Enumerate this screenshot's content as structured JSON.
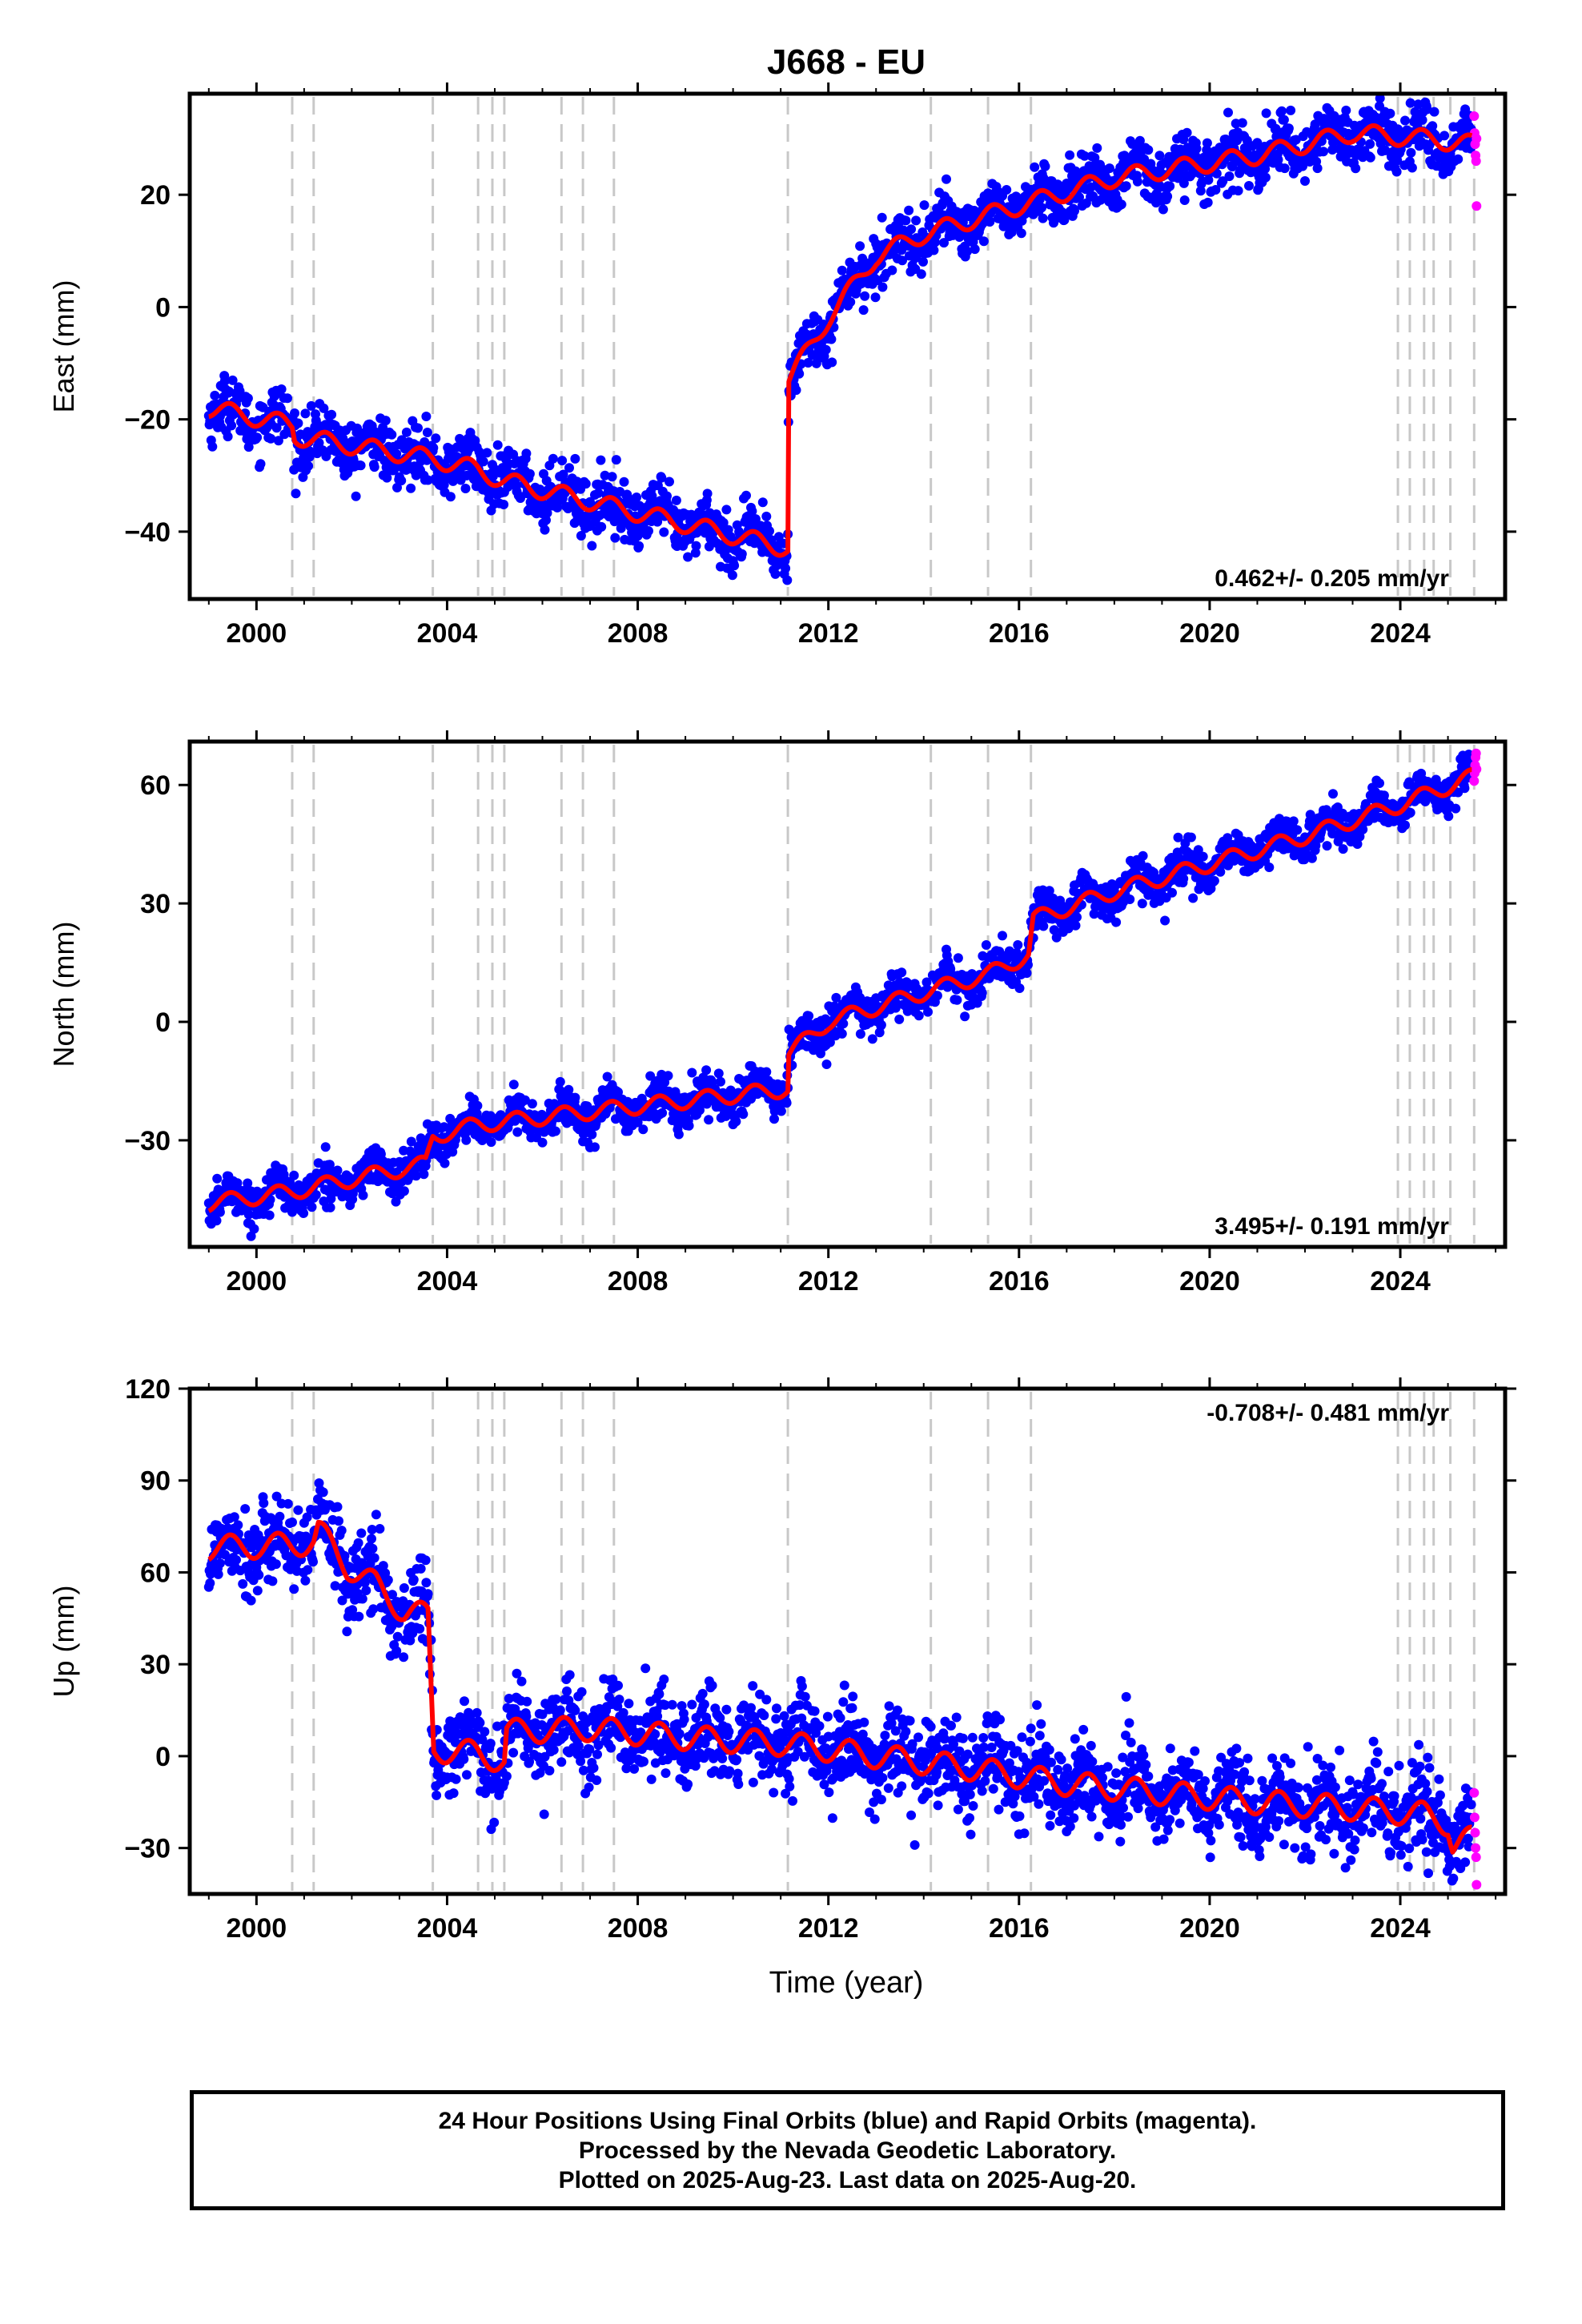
{
  "title": "J668 - EU",
  "xlabel": "Time (year)",
  "colors": {
    "final_orbits": "#0000ff",
    "rapid_orbits": "#ff00ff",
    "model": "#ff0000",
    "event_lines": "#c8c8c8"
  },
  "caption": {
    "line1": "24 Hour Positions Using Final Orbits (blue) and Rapid Orbits (magenta).",
    "line2": "Processed by the Nevada Geodetic Laboratory.",
    "line3": "Plotted on 2025-Aug-23. Last data on 2025-Aug-20."
  },
  "chart_data": [
    {
      "type": "scatter",
      "title": "J668 - EU",
      "ylabel": "East (mm)",
      "xlim": [
        1998.6,
        2026.2
      ],
      "ylim": [
        -52,
        38
      ],
      "xticks": [
        "2000",
        "2004",
        "2008",
        "2012",
        "2016",
        "2020",
        "2024"
      ],
      "yticks": [
        "-40",
        "-20",
        "0",
        "20"
      ],
      "rate_label": "0.462+/- 0.205 mm/yr",
      "rate_position": "bottom-right",
      "event_lines": [
        2000.75,
        2001.2,
        2003.7,
        2004.65,
        2004.95,
        2005.2,
        2006.4,
        2006.85,
        2007.5,
        2011.15,
        2014.15,
        2015.35,
        2016.25,
        2023.95,
        2024.2,
        2024.5,
        2024.7,
        2025.05,
        2025.55
      ],
      "seasonal_amplitude": 2,
      "noise_scatter": 2.5,
      "model": [
        [
          1999.0,
          -18
        ],
        [
          2000.75,
          -21
        ],
        [
          2000.8,
          -23
        ],
        [
          2003.7,
          -27
        ],
        [
          2004.65,
          -29
        ],
        [
          2005.2,
          -31
        ],
        [
          2011.15,
          -43
        ],
        [
          2011.17,
          -13
        ],
        [
          2012.0,
          -2
        ],
        [
          2013.0,
          9
        ],
        [
          2014.0,
          13
        ],
        [
          2016.0,
          18
        ],
        [
          2018.0,
          23
        ],
        [
          2021.0,
          27
        ],
        [
          2023.0,
          31
        ],
        [
          2024.5,
          30
        ],
        [
          2025.5,
          29
        ]
      ],
      "series": [
        {
          "name": "Final Orbits",
          "color": "#0000ff",
          "x_range": [
            1999.0,
            2025.5
          ]
        },
        {
          "name": "Rapid Orbits",
          "color": "#ff00ff",
          "points": [
            [
              2025.55,
              34
            ],
            [
              2025.56,
              31
            ],
            [
              2025.57,
              29
            ],
            [
              2025.58,
              27
            ],
            [
              2025.59,
              26
            ],
            [
              2025.6,
              18
            ],
            [
              2025.6,
              30
            ]
          ]
        }
      ]
    },
    {
      "type": "scatter",
      "ylabel": "North (mm)",
      "xlim": [
        1998.6,
        2026.2
      ],
      "ylim": [
        -57,
        71
      ],
      "xticks": [
        "2000",
        "2004",
        "2008",
        "2012",
        "2016",
        "2020",
        "2024"
      ],
      "yticks": [
        "-30",
        "0",
        "30",
        "60"
      ],
      "rate_label": "3.495+/- 0.191 mm/yr",
      "rate_position": "bottom-right",
      "event_lines": [
        2000.75,
        2001.2,
        2003.7,
        2004.65,
        2004.95,
        2005.2,
        2006.4,
        2006.85,
        2007.5,
        2011.15,
        2014.15,
        2015.35,
        2016.25,
        2023.95,
        2024.2,
        2024.5,
        2024.7,
        2025.05,
        2025.55
      ],
      "seasonal_amplitude": 2.5,
      "noise_scatter": 2.5,
      "model": [
        [
          1999.0,
          -46
        ],
        [
          2000.75,
          -43
        ],
        [
          2003.55,
          -36
        ],
        [
          2003.7,
          -29
        ],
        [
          2004.65,
          -26
        ],
        [
          2011.15,
          -17
        ],
        [
          2011.17,
          -8
        ],
        [
          2012.0,
          0
        ],
        [
          2014.15,
          8
        ],
        [
          2015.35,
          12
        ],
        [
          2016.2,
          17
        ],
        [
          2016.3,
          26
        ],
        [
          2018.0,
          33
        ],
        [
          2020.0,
          40
        ],
        [
          2022.0,
          47
        ],
        [
          2024.0,
          55
        ],
        [
          2025.5,
          62
        ]
      ],
      "series": [
        {
          "name": "Final Orbits",
          "color": "#0000ff",
          "x_range": [
            1999.0,
            2025.5
          ]
        },
        {
          "name": "Rapid Orbits",
          "color": "#ff00ff",
          "points": [
            [
              2025.55,
              61
            ],
            [
              2025.56,
              63
            ],
            [
              2025.57,
              65
            ],
            [
              2025.58,
              67
            ],
            [
              2025.59,
              68
            ],
            [
              2025.6,
              64
            ]
          ]
        }
      ]
    },
    {
      "type": "scatter",
      "ylabel": "Up (mm)",
      "xlim": [
        1998.6,
        2026.2
      ],
      "ylim": [
        -45,
        120
      ],
      "xticks": [
        "2000",
        "2004",
        "2008",
        "2012",
        "2016",
        "2020",
        "2024"
      ],
      "yticks": [
        "-30",
        "0",
        "30",
        "60",
        "90",
        "120"
      ],
      "rate_label": "-0.708+/- 0.481 mm/yr",
      "rate_position": "top-right",
      "event_lines": [
        2000.75,
        2001.2,
        2003.7,
        2004.65,
        2004.95,
        2005.2,
        2006.4,
        2006.85,
        2007.5,
        2011.15,
        2014.15,
        2015.35,
        2016.25,
        2023.95,
        2024.2,
        2024.5,
        2024.7,
        2025.05,
        2025.55
      ],
      "seasonal_amplitude": 5,
      "noise_scatter": 7,
      "model": [
        [
          1999.0,
          68
        ],
        [
          2000.75,
          69
        ],
        [
          2001.2,
          70
        ],
        [
          2001.3,
          74
        ],
        [
          2001.9,
          62
        ],
        [
          2002.5,
          56
        ],
        [
          2003.1,
          47
        ],
        [
          2003.6,
          46
        ],
        [
          2003.72,
          2
        ],
        [
          2004.65,
          1
        ],
        [
          2005.2,
          -2
        ],
        [
          2005.25,
          8
        ],
        [
          2007.0,
          9
        ],
        [
          2009.0,
          6
        ],
        [
          2011.15,
          4
        ],
        [
          2013.0,
          0
        ],
        [
          2015.0,
          -4
        ],
        [
          2017.0,
          -9
        ],
        [
          2019.0,
          -12
        ],
        [
          2021.0,
          -15
        ],
        [
          2023.0,
          -17
        ],
        [
          2024.5,
          -19
        ],
        [
          2025.0,
          -22
        ],
        [
          2025.1,
          -29
        ],
        [
          2025.5,
          -27
        ]
      ],
      "series": [
        {
          "name": "Final Orbits",
          "color": "#0000ff",
          "x_range": [
            1999.0,
            2025.5
          ]
        },
        {
          "name": "Rapid Orbits",
          "color": "#ff00ff",
          "points": [
            [
              2025.55,
              -12
            ],
            [
              2025.56,
              -20
            ],
            [
              2025.57,
              -25
            ],
            [
              2025.58,
              -30
            ],
            [
              2025.59,
              -33
            ],
            [
              2025.6,
              -42
            ]
          ]
        }
      ]
    }
  ]
}
